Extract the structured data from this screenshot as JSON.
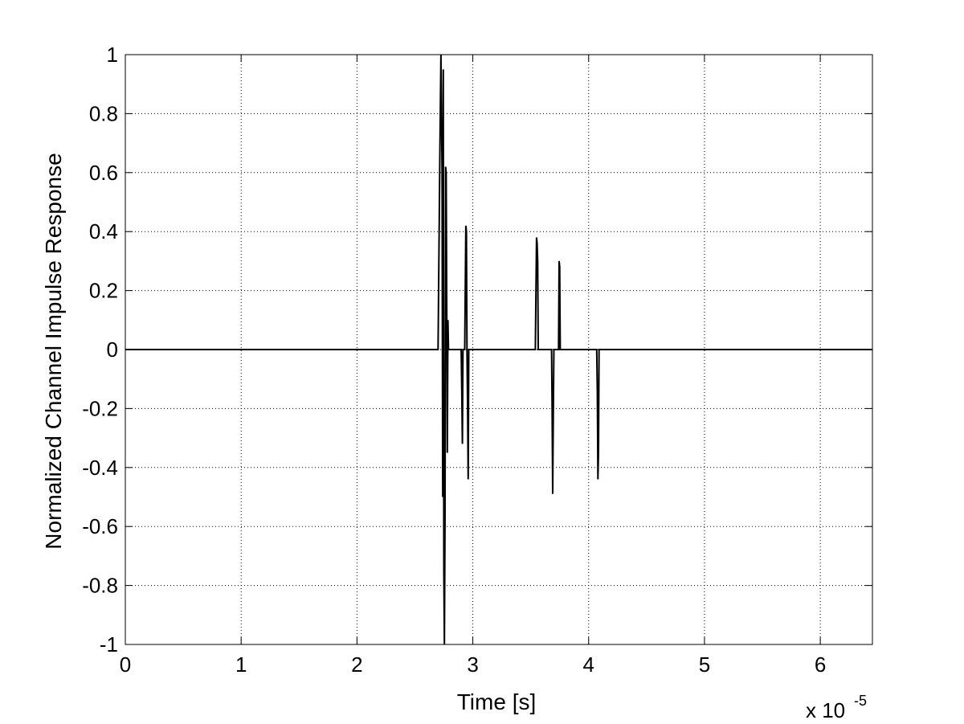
{
  "chart_data": {
    "type": "line",
    "title": "",
    "xlabel": "Time [s]",
    "ylabel": "Normalized Channel Impulse Response",
    "x_multiplier_text": "x 10",
    "x_multiplier_exponent": "-5",
    "xlim": [
      0,
      6.45
    ],
    "ylim": [
      -1,
      1
    ],
    "xticks": [
      0,
      1,
      2,
      3,
      4,
      5,
      6
    ],
    "xtick_labels": [
      "0",
      "1",
      "2",
      "3",
      "4",
      "5",
      "6"
    ],
    "yticks": [
      -1,
      -0.8,
      -0.6,
      -0.4,
      -0.2,
      0,
      0.2,
      0.4,
      0.6,
      0.8,
      1
    ],
    "ytick_labels": [
      "-1",
      "-0.8",
      "-0.6",
      "-0.4",
      "-0.2",
      "0",
      "0.2",
      "0.4",
      "0.6",
      "0.8",
      "1"
    ],
    "grid": true,
    "grid_style": "dotted",
    "line_color": "#000000",
    "series": [
      {
        "x": [
          0,
          2.7,
          2.715,
          2.725,
          2.735,
          2.74,
          2.745,
          2.75,
          2.755,
          2.76,
          2.765,
          2.77,
          2.775,
          2.78,
          2.785,
          2.79,
          2.795,
          2.8,
          2.805,
          2.81,
          2.82,
          2.9,
          2.905,
          2.91,
          2.915,
          2.92,
          2.93,
          2.94,
          2.945,
          2.95,
          2.955,
          2.96,
          2.965,
          2.97,
          2.975,
          2.98,
          2.985,
          2.99,
          2.995,
          3.0,
          3.005,
          3.01,
          3.02,
          3.54,
          3.55,
          3.555,
          3.56,
          3.565,
          3.57,
          3.575,
          3.58,
          3.59,
          3.68,
          3.685,
          3.69,
          3.695,
          3.7,
          3.705,
          3.71,
          3.72,
          3.74,
          3.745,
          3.75,
          3.755,
          3.76,
          3.765,
          3.77,
          4.05,
          4.07,
          4.075,
          4.08,
          4.085,
          4.09,
          4.095,
          4.1,
          4.11,
          6.45
        ],
        "y": [
          0,
          0,
          0.65,
          1.0,
          0.6,
          -0.5,
          0.95,
          -0.75,
          -1.0,
          -0.55,
          0.62,
          0.6,
          0.15,
          -0.35,
          0.1,
          0,
          0,
          0,
          0,
          0,
          0,
          0,
          -0.15,
          -0.32,
          0,
          0,
          0,
          0.42,
          0.4,
          0,
          -0.2,
          -0.44,
          0,
          0,
          0,
          0,
          0,
          0,
          0,
          0,
          0,
          0,
          0,
          0,
          0.38,
          0.36,
          0.3,
          0,
          0,
          0,
          0,
          0,
          0,
          -0.2,
          -0.49,
          -0.2,
          0,
          0,
          0,
          0,
          0,
          0.3,
          0.28,
          0,
          0,
          0,
          0,
          0,
          0,
          -0.15,
          -0.44,
          -0.35,
          0,
          0,
          0,
          0,
          0
        ]
      }
    ]
  }
}
